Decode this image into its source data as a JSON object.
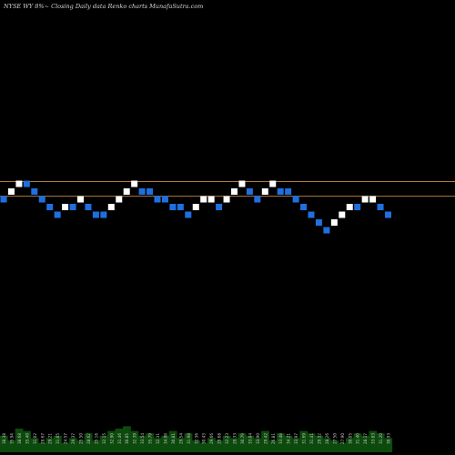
{
  "header": {
    "title": "NYSE WY 8%~  Closing Daily data  Renko  charts MunafaSutra.com"
  },
  "colors": {
    "background": "#000000",
    "up_brick": "#ffffff",
    "down_brick": "#1f6fe0",
    "reference_line": "#b07a3c",
    "volume_fill": "#0d4a0d",
    "volume_label": "#c8c8c8"
  },
  "chart_data": {
    "type": "renko",
    "title": "NYSE WY 8%~  Closing Daily data  Renko  charts MunafaSutra.com",
    "brick_levels": [
      0,
      1,
      2,
      2,
      1,
      0,
      -1,
      -2,
      -1,
      -1,
      0,
      -1,
      -2,
      -2,
      -1,
      0,
      1,
      2,
      1,
      1,
      0,
      0,
      -1,
      -1,
      -2,
      -1,
      0,
      0,
      -1,
      0,
      1,
      2,
      1,
      0,
      1,
      2,
      1,
      1,
      0,
      -1,
      -2,
      -3,
      -4,
      -3,
      -2,
      -1,
      -1,
      0,
      0,
      -1,
      -2
    ],
    "brick_colors": [
      "blue",
      "white",
      "white",
      "blue",
      "blue",
      "blue",
      "blue",
      "blue",
      "white",
      "blue",
      "white",
      "blue",
      "blue",
      "blue",
      "white",
      "white",
      "white",
      "white",
      "blue",
      "blue",
      "blue",
      "blue",
      "blue",
      "blue",
      "blue",
      "white",
      "white",
      "white",
      "blue",
      "white",
      "white",
      "white",
      "blue",
      "blue",
      "white",
      "white",
      "blue",
      "blue",
      "blue",
      "blue",
      "blue",
      "blue",
      "blue",
      "white",
      "white",
      "white",
      "blue",
      "white",
      "white",
      "blue",
      "blue"
    ],
    "reference_levels": [
      2.3,
      0.4
    ],
    "volume_labels": [
      "38.38",
      "35.94",
      "38.68",
      "35.40",
      "31.02",
      "28.67",
      "29.21",
      "31.05",
      "24.57",
      "29.37",
      "25.50",
      "28.62",
      "25.16",
      "32.15",
      "32.90",
      "31.46",
      "30.85",
      "32.39",
      "33.54",
      "35.79",
      "32.31",
      "34.08",
      "30.81",
      "29.54",
      "31.98",
      "32.36",
      "30.43",
      "29.66",
      "29.68",
      "32.23",
      "29.33",
      "30.79",
      "33.04",
      "33.90",
      "29.42",
      "26.81",
      "33.48",
      "34.21",
      "33.97",
      "31.69",
      "31.41",
      "29.52",
      "28.26",
      "27.50",
      "27.90",
      "30.05",
      "31.40",
      "28.17",
      "33.83",
      "31.20",
      "30.93"
    ],
    "volume_values": [
      7,
      5,
      10,
      9,
      6,
      4,
      6,
      7,
      4,
      6,
      5,
      8,
      5,
      7,
      9,
      10,
      11,
      9,
      7,
      8,
      6,
      7,
      9,
      6,
      8,
      5,
      4,
      6,
      5,
      7,
      6,
      8,
      7,
      6,
      9,
      5,
      8,
      7,
      6,
      9,
      8,
      7,
      6,
      5,
      4,
      6,
      8,
      7,
      9,
      8,
      6
    ]
  }
}
